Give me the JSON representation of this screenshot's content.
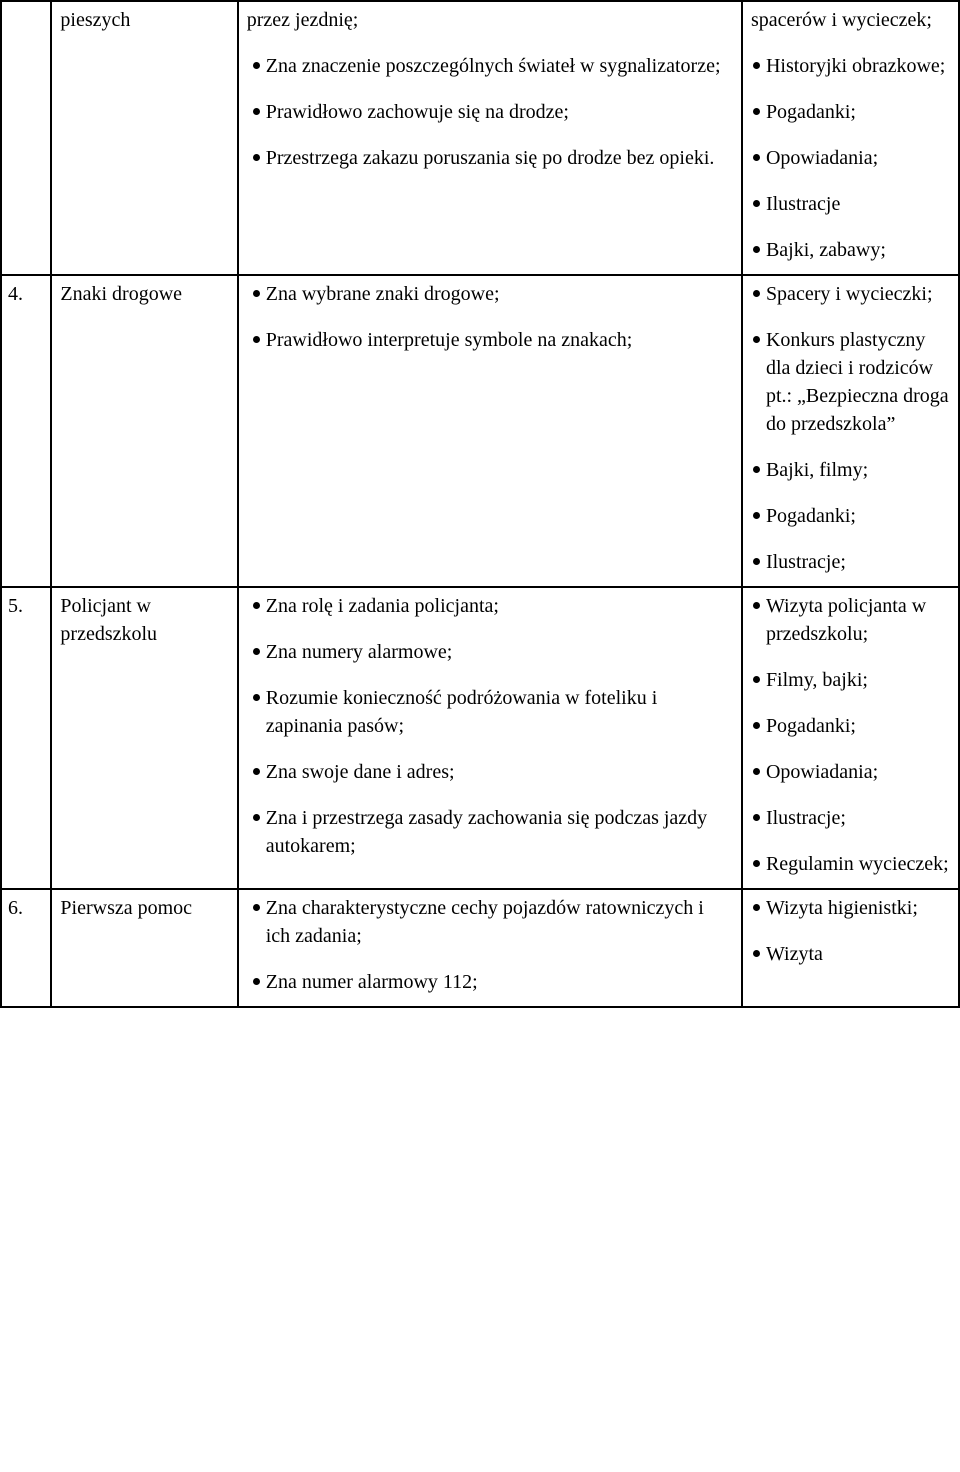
{
  "rows": [
    {
      "num": "",
      "topic": "pieszych",
      "topic_plain_first": true,
      "goals": [
        {
          "text": "przez jezdnię;",
          "plain": true
        },
        {
          "text": "Zna znaczenie poszczególnych świateł w sygnalizatorze;"
        },
        {
          "text": "Prawidłowo zachowuje się na drodze;"
        },
        {
          "text": "Przestrzega zakazu poruszania się po drodze bez opieki."
        }
      ],
      "methods": [
        {
          "text": "spacerów i wycieczek;",
          "plain": true
        },
        {
          "text": "Historyjki obrazkowe;"
        },
        {
          "text": "Pogadanki;"
        },
        {
          "text": "Opowiadania;"
        },
        {
          "text": "Ilustracje"
        },
        {
          "text": "Bajki, zabawy;"
        }
      ]
    },
    {
      "num": "4.",
      "topic": "Znaki drogowe",
      "goals": [
        {
          "text": "Zna wybrane znaki drogowe;"
        },
        {
          "text": "Prawidłowo interpretuje symbole na znakach;"
        }
      ],
      "methods": [
        {
          "text": "Spacery i wycieczki;"
        },
        {
          "text": "Konkurs plastyczny dla dzieci i rodziców pt.: „Bezpieczna droga do przedszkola”"
        },
        {
          "text": "Bajki, filmy;"
        },
        {
          "text": "Pogadanki;"
        },
        {
          "text": "Ilustracje;"
        }
      ]
    },
    {
      "num": "5.",
      "topic": "Policjant w przedszkolu",
      "goals": [
        {
          "text": "Zna rolę i zadania policjanta;"
        },
        {
          "text": "Zna numery alarmowe;"
        },
        {
          "text": "Rozumie konieczność podróżowania w foteliku i zapinania pasów;"
        },
        {
          "text": "Zna swoje dane i adres;"
        },
        {
          "text": "Zna i przestrzega zasady zachowania się podczas jazdy autokarem;"
        }
      ],
      "methods": [
        {
          "text": "Wizyta policjanta w przedszkolu;"
        },
        {
          "text": "Filmy, bajki;"
        },
        {
          "text": "Pogadanki;"
        },
        {
          "text": "Opowiadania;"
        },
        {
          "text": "Ilustracje;"
        },
        {
          "text": "Regulamin wycieczek;"
        }
      ]
    },
    {
      "num": "6.",
      "topic": "Pierwsza pomoc",
      "goals": [
        {
          "text": "Zna charakterystyczne cechy pojazdów ratowniczych i ich zadania;"
        },
        {
          "text": "Zna numer alarmowy 112;"
        }
      ],
      "methods": [
        {
          "text": "Wizyta higienistki;"
        },
        {
          "text": "Wizyta"
        }
      ]
    }
  ]
}
